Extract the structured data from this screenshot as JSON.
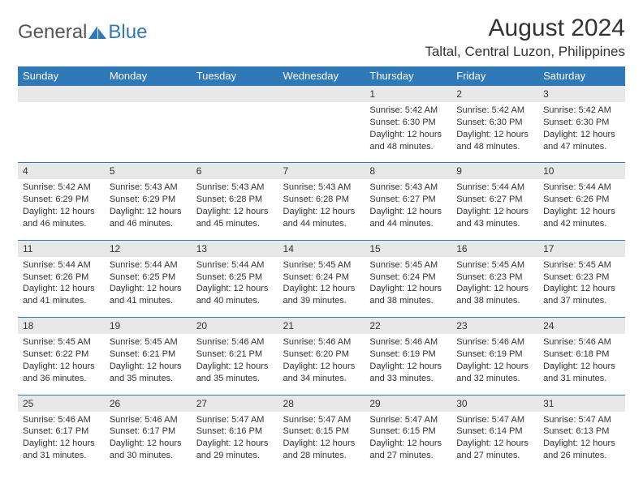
{
  "logo": {
    "text1": "General",
    "text2": "Blue"
  },
  "title": "August 2024",
  "location": "Taltal, Central Luzon, Philippines",
  "colors": {
    "header_bg": "#2f79b9",
    "header_text": "#ffffff",
    "daynum_bg": "#e8e8e8",
    "border": "#2f79b9",
    "page_bg": "#ffffff",
    "text": "#333333"
  },
  "weekdays": [
    "Sunday",
    "Monday",
    "Tuesday",
    "Wednesday",
    "Thursday",
    "Friday",
    "Saturday"
  ],
  "weeks": [
    [
      null,
      null,
      null,
      null,
      {
        "n": "1",
        "sunrise": "Sunrise: 5:42 AM",
        "sunset": "Sunset: 6:30 PM",
        "d1": "Daylight: 12 hours",
        "d2": "and 48 minutes."
      },
      {
        "n": "2",
        "sunrise": "Sunrise: 5:42 AM",
        "sunset": "Sunset: 6:30 PM",
        "d1": "Daylight: 12 hours",
        "d2": "and 48 minutes."
      },
      {
        "n": "3",
        "sunrise": "Sunrise: 5:42 AM",
        "sunset": "Sunset: 6:30 PM",
        "d1": "Daylight: 12 hours",
        "d2": "and 47 minutes."
      }
    ],
    [
      {
        "n": "4",
        "sunrise": "Sunrise: 5:42 AM",
        "sunset": "Sunset: 6:29 PM",
        "d1": "Daylight: 12 hours",
        "d2": "and 46 minutes."
      },
      {
        "n": "5",
        "sunrise": "Sunrise: 5:43 AM",
        "sunset": "Sunset: 6:29 PM",
        "d1": "Daylight: 12 hours",
        "d2": "and 46 minutes."
      },
      {
        "n": "6",
        "sunrise": "Sunrise: 5:43 AM",
        "sunset": "Sunset: 6:28 PM",
        "d1": "Daylight: 12 hours",
        "d2": "and 45 minutes."
      },
      {
        "n": "7",
        "sunrise": "Sunrise: 5:43 AM",
        "sunset": "Sunset: 6:28 PM",
        "d1": "Daylight: 12 hours",
        "d2": "and 44 minutes."
      },
      {
        "n": "8",
        "sunrise": "Sunrise: 5:43 AM",
        "sunset": "Sunset: 6:27 PM",
        "d1": "Daylight: 12 hours",
        "d2": "and 44 minutes."
      },
      {
        "n": "9",
        "sunrise": "Sunrise: 5:44 AM",
        "sunset": "Sunset: 6:27 PM",
        "d1": "Daylight: 12 hours",
        "d2": "and 43 minutes."
      },
      {
        "n": "10",
        "sunrise": "Sunrise: 5:44 AM",
        "sunset": "Sunset: 6:26 PM",
        "d1": "Daylight: 12 hours",
        "d2": "and 42 minutes."
      }
    ],
    [
      {
        "n": "11",
        "sunrise": "Sunrise: 5:44 AM",
        "sunset": "Sunset: 6:26 PM",
        "d1": "Daylight: 12 hours",
        "d2": "and 41 minutes."
      },
      {
        "n": "12",
        "sunrise": "Sunrise: 5:44 AM",
        "sunset": "Sunset: 6:25 PM",
        "d1": "Daylight: 12 hours",
        "d2": "and 41 minutes."
      },
      {
        "n": "13",
        "sunrise": "Sunrise: 5:44 AM",
        "sunset": "Sunset: 6:25 PM",
        "d1": "Daylight: 12 hours",
        "d2": "and 40 minutes."
      },
      {
        "n": "14",
        "sunrise": "Sunrise: 5:45 AM",
        "sunset": "Sunset: 6:24 PM",
        "d1": "Daylight: 12 hours",
        "d2": "and 39 minutes."
      },
      {
        "n": "15",
        "sunrise": "Sunrise: 5:45 AM",
        "sunset": "Sunset: 6:24 PM",
        "d1": "Daylight: 12 hours",
        "d2": "and 38 minutes."
      },
      {
        "n": "16",
        "sunrise": "Sunrise: 5:45 AM",
        "sunset": "Sunset: 6:23 PM",
        "d1": "Daylight: 12 hours",
        "d2": "and 38 minutes."
      },
      {
        "n": "17",
        "sunrise": "Sunrise: 5:45 AM",
        "sunset": "Sunset: 6:23 PM",
        "d1": "Daylight: 12 hours",
        "d2": "and 37 minutes."
      }
    ],
    [
      {
        "n": "18",
        "sunrise": "Sunrise: 5:45 AM",
        "sunset": "Sunset: 6:22 PM",
        "d1": "Daylight: 12 hours",
        "d2": "and 36 minutes."
      },
      {
        "n": "19",
        "sunrise": "Sunrise: 5:45 AM",
        "sunset": "Sunset: 6:21 PM",
        "d1": "Daylight: 12 hours",
        "d2": "and 35 minutes."
      },
      {
        "n": "20",
        "sunrise": "Sunrise: 5:46 AM",
        "sunset": "Sunset: 6:21 PM",
        "d1": "Daylight: 12 hours",
        "d2": "and 35 minutes."
      },
      {
        "n": "21",
        "sunrise": "Sunrise: 5:46 AM",
        "sunset": "Sunset: 6:20 PM",
        "d1": "Daylight: 12 hours",
        "d2": "and 34 minutes."
      },
      {
        "n": "22",
        "sunrise": "Sunrise: 5:46 AM",
        "sunset": "Sunset: 6:19 PM",
        "d1": "Daylight: 12 hours",
        "d2": "and 33 minutes."
      },
      {
        "n": "23",
        "sunrise": "Sunrise: 5:46 AM",
        "sunset": "Sunset: 6:19 PM",
        "d1": "Daylight: 12 hours",
        "d2": "and 32 minutes."
      },
      {
        "n": "24",
        "sunrise": "Sunrise: 5:46 AM",
        "sunset": "Sunset: 6:18 PM",
        "d1": "Daylight: 12 hours",
        "d2": "and 31 minutes."
      }
    ],
    [
      {
        "n": "25",
        "sunrise": "Sunrise: 5:46 AM",
        "sunset": "Sunset: 6:17 PM",
        "d1": "Daylight: 12 hours",
        "d2": "and 31 minutes."
      },
      {
        "n": "26",
        "sunrise": "Sunrise: 5:46 AM",
        "sunset": "Sunset: 6:17 PM",
        "d1": "Daylight: 12 hours",
        "d2": "and 30 minutes."
      },
      {
        "n": "27",
        "sunrise": "Sunrise: 5:47 AM",
        "sunset": "Sunset: 6:16 PM",
        "d1": "Daylight: 12 hours",
        "d2": "and 29 minutes."
      },
      {
        "n": "28",
        "sunrise": "Sunrise: 5:47 AM",
        "sunset": "Sunset: 6:15 PM",
        "d1": "Daylight: 12 hours",
        "d2": "and 28 minutes."
      },
      {
        "n": "29",
        "sunrise": "Sunrise: 5:47 AM",
        "sunset": "Sunset: 6:15 PM",
        "d1": "Daylight: 12 hours",
        "d2": "and 27 minutes."
      },
      {
        "n": "30",
        "sunrise": "Sunrise: 5:47 AM",
        "sunset": "Sunset: 6:14 PM",
        "d1": "Daylight: 12 hours",
        "d2": "and 27 minutes."
      },
      {
        "n": "31",
        "sunrise": "Sunrise: 5:47 AM",
        "sunset": "Sunset: 6:13 PM",
        "d1": "Daylight: 12 hours",
        "d2": "and 26 minutes."
      }
    ]
  ]
}
